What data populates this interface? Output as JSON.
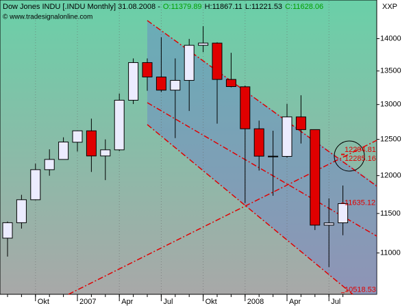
{
  "chart_data": {
    "type": "candlestick",
    "title": "Dow Jones INDU [.INDU  Monthly] 31.08.2008 -",
    "ohlc_labels": [
      {
        "text": "O:11379.89",
        "color": "#00a000"
      },
      {
        "text": "H:11867.11",
        "color": "#000000"
      },
      {
        "text": "L:11221.53",
        "color": "#000000"
      },
      {
        "text": "C:11628.06",
        "color": "#00a000"
      }
    ],
    "subtitle": "© www.tradesignalonline.com",
    "axis_label": "XXP",
    "categories": [
      null,
      null,
      "Okt",
      null,
      null,
      "2007",
      null,
      null,
      "Apr",
      null,
      null,
      "Jul",
      null,
      null,
      "Okt",
      null,
      null,
      "2008",
      null,
      null,
      "Apr",
      null,
      null,
      "Jul",
      null
    ],
    "open": [
      11185,
      11381,
      11679,
      12081,
      12221,
      12460,
      12621,
      12269,
      12354,
      13063,
      13628,
      13409,
      13212,
      13358,
      13896,
      13930,
      13372,
      13262,
      12650,
      12266,
      12263,
      12820,
      12638,
      11350,
      11379.89
    ],
    "high": [
      11397,
      11744,
      12163,
      12361,
      12529,
      12621,
      12795,
      12500,
      13162,
      13692,
      13692,
      14022,
      13692,
      13996,
      14198,
      13943,
      13779,
      13280,
      12767,
      12622,
      13010,
      13136,
      12638,
      11697,
      11867.11
    ],
    "low": [
      10955,
      11306,
      11670,
      11999,
      12258,
      12330,
      12050,
      11940,
      12336,
      13007,
      13203,
      13184,
      12518,
      12906,
      13788,
      12724,
      13254,
      11635,
      12069,
      11731,
      12247,
      12442,
      11287,
      10827,
      11221.53
    ],
    "close": [
      11381,
      11679,
      12081,
      12221,
      12463,
      12621,
      12269,
      12354,
      13063,
      13628,
      13409,
      13212,
      13358,
      13896,
      13930,
      13372,
      13265,
      12650,
      12266,
      12263,
      12820,
      12638,
      11350,
      11378,
      11628.06
    ],
    "up_color": "#ececff",
    "down_color": "#e00000",
    "log_scale": true,
    "ylim": [
      10500,
      14600
    ],
    "yticks": [
      11000,
      11500,
      12000,
      12500,
      13000,
      13500,
      14000
    ],
    "price_labels": [
      12294.81,
      12285.16,
      11635.12,
      10518.53
    ],
    "price_label_color": "#e00000"
  }
}
